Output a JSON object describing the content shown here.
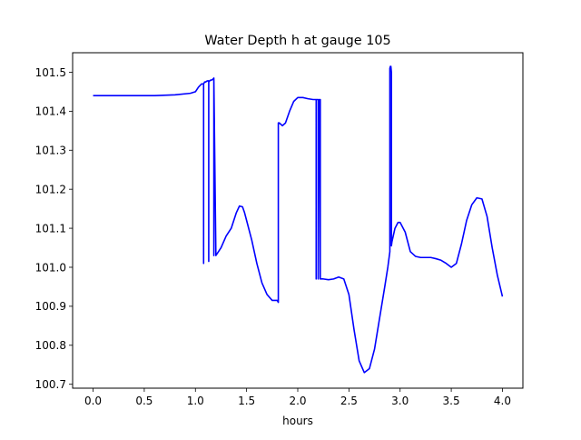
{
  "chart_data": {
    "type": "line",
    "title": "Water Depth h at gauge 105",
    "xlabel": "hours",
    "ylabel": "",
    "xlim": [
      -0.2,
      4.2
    ],
    "ylim": [
      100.69,
      101.55
    ],
    "xticks": [
      0.0,
      0.5,
      1.0,
      1.5,
      2.0,
      2.5,
      3.0,
      3.5,
      4.0
    ],
    "xtick_labels": [
      "0.0",
      "0.5",
      "1.0",
      "1.5",
      "2.0",
      "2.5",
      "3.0",
      "3.5",
      "4.0"
    ],
    "yticks": [
      100.7,
      100.8,
      100.9,
      101.0,
      101.1,
      101.2,
      101.3,
      101.4,
      101.5
    ],
    "ytick_labels": [
      "100.7",
      "100.8",
      "100.9",
      "101.0",
      "101.1",
      "101.2",
      "101.3",
      "101.4",
      "101.5"
    ],
    "grid": false,
    "legend": "none",
    "series": [
      {
        "color": "#0000ff",
        "x": [
          0.0,
          0.3,
          0.6,
          0.8,
          0.95,
          1.0,
          1.03,
          1.06,
          1.08,
          1.08,
          1.08,
          1.09,
          1.1,
          1.11,
          1.12,
          1.13,
          1.13,
          1.13,
          1.14,
          1.15,
          1.155,
          1.16,
          1.17,
          1.18,
          1.18,
          1.18,
          1.2,
          1.25,
          1.3,
          1.35,
          1.4,
          1.43,
          1.46,
          1.48,
          1.5,
          1.55,
          1.6,
          1.65,
          1.7,
          1.75,
          1.8,
          1.81,
          1.81,
          1.82,
          1.85,
          1.88,
          1.92,
          1.96,
          2.0,
          2.05,
          2.1,
          2.15,
          2.18,
          2.18,
          2.18,
          2.19,
          2.2,
          2.2,
          2.21,
          2.22,
          2.22,
          2.22,
          2.25,
          2.3,
          2.35,
          2.4,
          2.45,
          2.5,
          2.55,
          2.6,
          2.65,
          2.7,
          2.75,
          2.8,
          2.85,
          2.88,
          2.9,
          2.9,
          2.905,
          2.91,
          2.915,
          2.915,
          2.92,
          2.95,
          2.98,
          3.0,
          3.05,
          3.1,
          3.15,
          3.2,
          3.25,
          3.3,
          3.35,
          3.4,
          3.45,
          3.5,
          3.55,
          3.6,
          3.65,
          3.7,
          3.75,
          3.8,
          3.85,
          3.9,
          3.95,
          4.0
        ],
        "values": [
          101.44,
          101.44,
          101.44,
          101.442,
          101.446,
          101.45,
          101.462,
          101.47,
          101.47,
          101.01,
          101.47,
          101.475,
          101.475,
          101.477,
          101.478,
          101.478,
          101.015,
          101.475,
          101.478,
          101.48,
          101.48,
          101.48,
          101.482,
          101.485,
          101.03,
          101.485,
          101.03,
          101.05,
          101.08,
          101.1,
          101.14,
          101.157,
          101.155,
          101.14,
          101.12,
          101.07,
          101.01,
          100.96,
          100.93,
          100.915,
          100.915,
          100.91,
          101.37,
          101.37,
          101.363,
          101.37,
          101.4,
          101.425,
          101.435,
          101.435,
          101.432,
          101.43,
          101.43,
          100.97,
          101.43,
          101.43,
          101.43,
          100.97,
          101.43,
          101.43,
          100.97,
          100.97,
          100.97,
          100.968,
          100.97,
          100.975,
          100.97,
          100.93,
          100.84,
          100.76,
          100.73,
          100.74,
          100.79,
          100.87,
          100.95,
          101.0,
          101.04,
          101.51,
          101.515,
          101.515,
          101.5,
          101.055,
          101.065,
          101.1,
          101.115,
          101.115,
          101.09,
          101.04,
          101.028,
          101.025,
          101.025,
          101.025,
          101.022,
          101.018,
          101.01,
          101.0,
          101.01,
          101.06,
          101.12,
          101.16,
          101.178,
          101.175,
          101.13,
          101.05,
          100.98,
          100.925
        ]
      }
    ]
  }
}
